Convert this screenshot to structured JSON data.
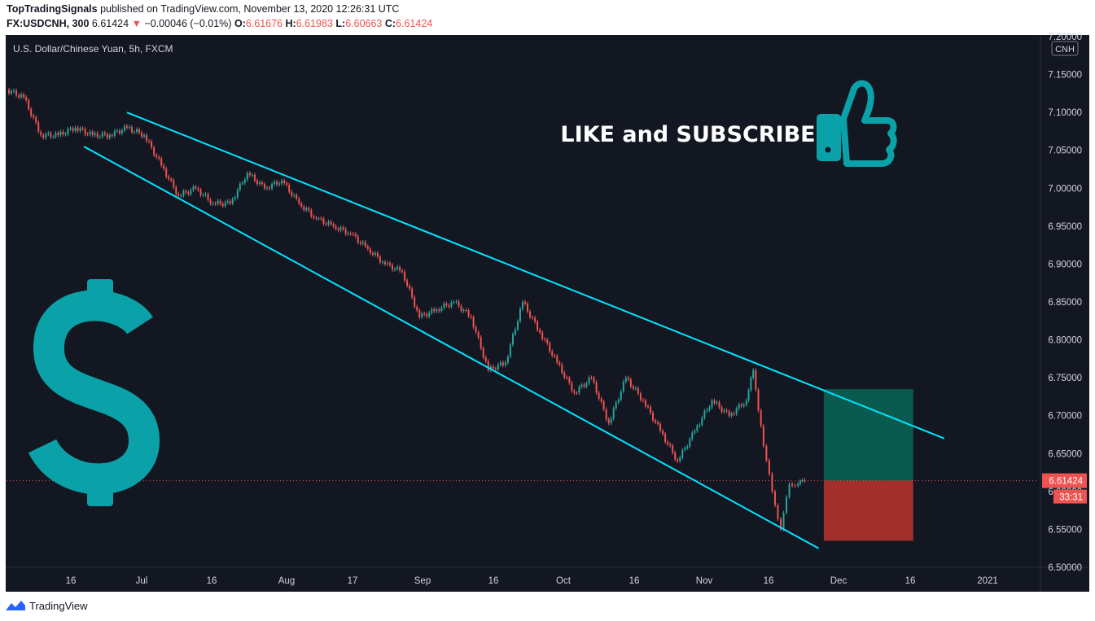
{
  "header": {
    "author": "TopTradingSignals",
    "published_text": "published on TradingView.com, November 13, 2020 12:26:31 UTC",
    "symbol": "FX:USDCNH, 300",
    "last": "6.61424",
    "change_arrow": "▼",
    "change": "−0.00046 (−0.01%)",
    "o_label": "O:",
    "o_value": "6.61676",
    "h_label": "H:",
    "h_value": "6.61983",
    "l_label": "L:",
    "l_value": "6.60663",
    "c_label": "C:",
    "c_value": "6.61424"
  },
  "chart_data": {
    "type": "candlestick",
    "title": "U.S. Dollar/Chinese Yuan, 5h, FXCM",
    "currency_badge": "CNH",
    "ylim": [
      6.5,
      7.2
    ],
    "y_ticks": [
      "7.20000",
      "7.15000",
      "7.10000",
      "7.05000",
      "7.00000",
      "6.95000",
      "6.90000",
      "6.85000",
      "6.80000",
      "6.75000",
      "6.70000",
      "6.65000",
      "6.60000",
      "6.55000",
      "6.50000"
    ],
    "x_ticks": [
      "16",
      "Jul",
      "16",
      "Aug",
      "17",
      "Sep",
      "16",
      "Oct",
      "16",
      "Nov",
      "16",
      "Dec",
      "16",
      "2021"
    ],
    "price_path": [
      [
        0,
        7.13
      ],
      [
        10,
        7.12
      ],
      [
        20,
        7.07
      ],
      [
        30,
        7.07
      ],
      [
        40,
        7.08
      ],
      [
        50,
        7.07
      ],
      [
        60,
        7.07
      ],
      [
        70,
        7.08
      ],
      [
        80,
        7.07
      ],
      [
        90,
        7.03
      ],
      [
        100,
        6.99
      ],
      [
        110,
        7.0
      ],
      [
        120,
        6.98
      ],
      [
        130,
        6.98
      ],
      [
        140,
        7.02
      ],
      [
        150,
        7.0
      ],
      [
        160,
        7.01
      ],
      [
        170,
        6.98
      ],
      [
        180,
        6.96
      ],
      [
        190,
        6.95
      ],
      [
        200,
        6.94
      ],
      [
        210,
        6.92
      ],
      [
        220,
        6.9
      ],
      [
        230,
        6.89
      ],
      [
        240,
        6.83
      ],
      [
        250,
        6.84
      ],
      [
        260,
        6.85
      ],
      [
        270,
        6.83
      ],
      [
        280,
        6.76
      ],
      [
        290,
        6.77
      ],
      [
        300,
        6.85
      ],
      [
        310,
        6.81
      ],
      [
        320,
        6.77
      ],
      [
        330,
        6.73
      ],
      [
        340,
        6.75
      ],
      [
        350,
        6.69
      ],
      [
        360,
        6.75
      ],
      [
        370,
        6.72
      ],
      [
        380,
        6.68
      ],
      [
        390,
        6.64
      ],
      [
        400,
        6.68
      ],
      [
        410,
        6.72
      ],
      [
        420,
        6.7
      ],
      [
        430,
        6.72
      ],
      [
        434,
        6.76
      ],
      [
        440,
        6.66
      ],
      [
        445,
        6.6
      ],
      [
        450,
        6.55
      ],
      [
        455,
        6.61
      ],
      [
        460,
        6.61
      ],
      [
        464,
        6.61424
      ]
    ],
    "channel_upper": [
      [
        70,
        7.1
      ],
      [
        545,
        6.67
      ]
    ],
    "channel_lower": [
      [
        45,
        7.055
      ],
      [
        472,
        6.525
      ]
    ],
    "position": {
      "entry": 6.61424,
      "target": 6.735,
      "stop": 6.535
    },
    "last_price_label": "6.61424",
    "countdown_label": "33:31",
    "overlay_text": "LIKE and SUBSCRIBE",
    "colors": {
      "background": "#131722",
      "channel": "#00e5ff",
      "up": "#26a69a",
      "down": "#ef5350",
      "profit_zone": "#0b5a50",
      "loss_zone": "#a12f2c",
      "icon": "#0aa2a8"
    }
  },
  "icons": [
    "dollar-icon",
    "thumbs-up-icon",
    "tradingview-logo-icon"
  ],
  "footer": {
    "brand": "TradingView"
  }
}
